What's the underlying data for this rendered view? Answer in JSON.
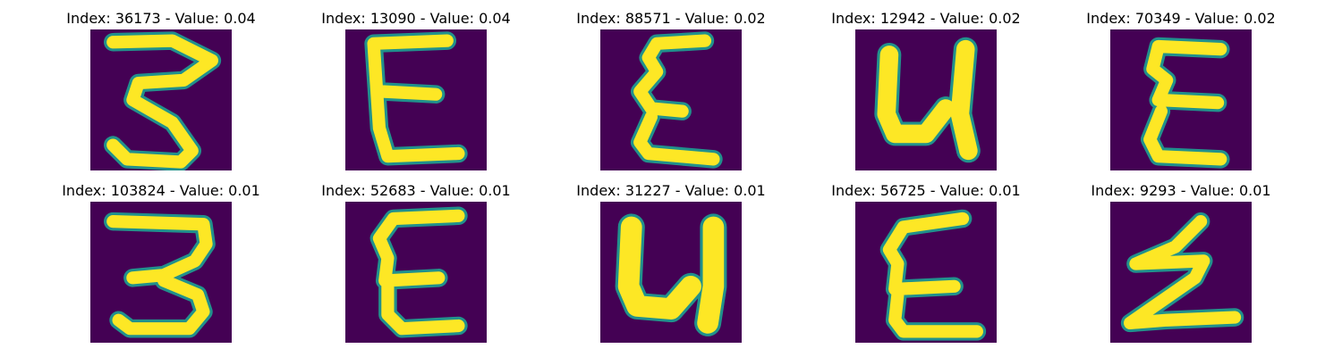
{
  "panels": [
    {
      "title": "Index: 36173 - Value: 0.04",
      "glyph": "z-serif"
    },
    {
      "title": "Index: 13090 - Value: 0.04",
      "glyph": "E-wide"
    },
    {
      "title": "Index: 88571 - Value: 0.02",
      "glyph": "E-narrow"
    },
    {
      "title": "Index: 12942 - Value: 0.02",
      "glyph": "Y-bold"
    },
    {
      "title": "Index: 70349 - Value: 0.02",
      "glyph": "E-narrow2"
    },
    {
      "title": "Index: 103824 - Value: 0.01",
      "glyph": "three"
    },
    {
      "title": "Index: 52683 - Value: 0.01",
      "glyph": "E-curvy"
    },
    {
      "title": "Index: 31227 - Value: 0.01",
      "glyph": "Y-bold2"
    },
    {
      "title": "Index: 56725 - Value: 0.01",
      "glyph": "E-curvy2"
    },
    {
      "title": "Index: 9293 - Value: 0.01",
      "glyph": "z-slant"
    }
  ],
  "colors": {
    "background": "#440154",
    "edge": "#21918c",
    "stroke": "#fde725"
  }
}
